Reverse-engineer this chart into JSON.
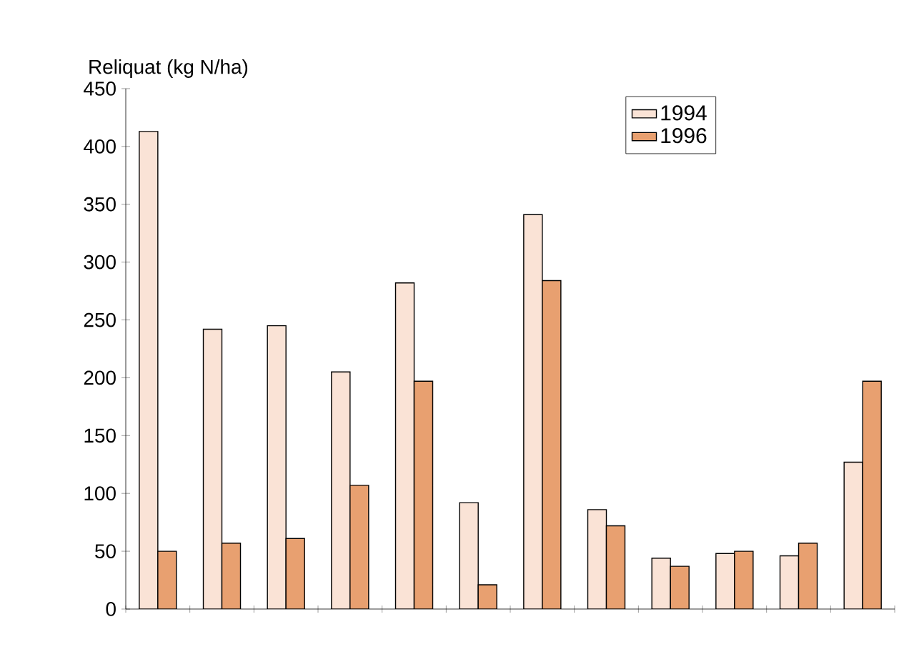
{
  "chart_data": {
    "type": "bar",
    "ylabel": "Reliquat (kg N/ha)",
    "categories": [
      null,
      null,
      null,
      null,
      null,
      null,
      null,
      null,
      null,
      null,
      null,
      null
    ],
    "series": [
      {
        "name": "1994",
        "color": "#fae3d6",
        "values": [
          413,
          242,
          245,
          205,
          282,
          92,
          341,
          86,
          44,
          48,
          46,
          127
        ]
      },
      {
        "name": "1996",
        "color": "#e8a070",
        "values": [
          50,
          57,
          61,
          107,
          197,
          21,
          284,
          72,
          37,
          50,
          57,
          197
        ]
      }
    ],
    "ylim": [
      0,
      450
    ],
    "yticks": [
      0,
      50,
      100,
      150,
      200,
      250,
      300,
      350,
      400,
      450
    ],
    "grid": false,
    "legend": "top right"
  }
}
